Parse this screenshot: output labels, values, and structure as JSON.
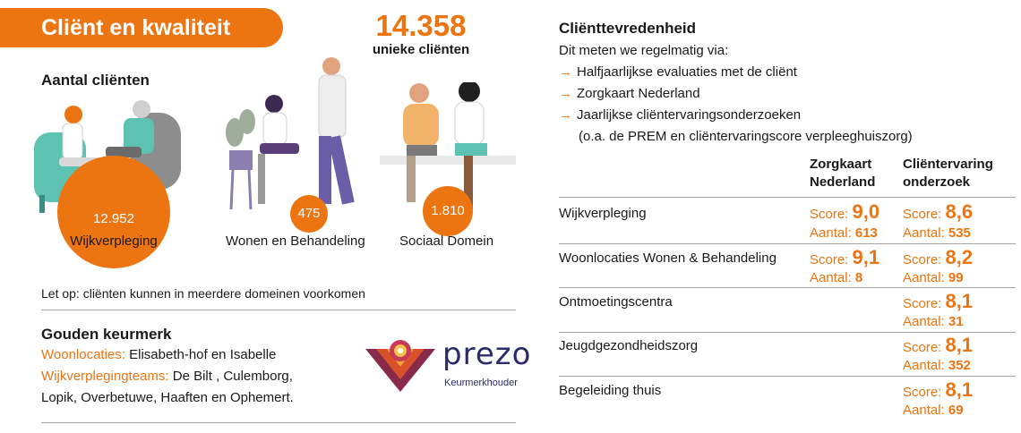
{
  "header": {
    "title": "Cliënt en kwaliteit"
  },
  "totals": {
    "number": "14.358",
    "label": "unieke cliënten"
  },
  "clients": {
    "title": "Aantal cliënten",
    "domains": [
      {
        "value": "12.952",
        "label": "Wijkverpleging"
      },
      {
        "value": "475",
        "label": "Wonen en Behandeling"
      },
      {
        "value": "1.810",
        "label": "Sociaal Domein"
      }
    ],
    "note": "Let op: cliënten kunnen in meerdere domeinen voorkomen"
  },
  "keurmerk": {
    "title": "Gouden keurmerk",
    "locations_label": "Woonlocaties:",
    "locations_value": " Elisabeth-hof en Isabelle",
    "teams_label": "Wijkverplegingteams:",
    "teams_value_1": " De Bilt , Culemborg,",
    "teams_value_2": "Lopik, Overbetuwe, Haaften en Ophemert.",
    "logo_name": "prezo",
    "logo_sub": "Keurmerkhouder"
  },
  "satisfaction": {
    "title": "Cliënttevredenheid",
    "intro": "Dit meten we regelmatig via:",
    "methods": [
      "Halfjaarlijkse evaluaties met de cliënt",
      "Zorgkaart Nederland",
      "Jaarlijkse cliëntervaringsonderzoeken"
    ],
    "methods_note": "(o.a. de PREM en cliëntervaringscore verpleeghuiszorg)",
    "col1_line1": "Zorgkaart",
    "col1_line2": "Nederland",
    "col2_line1": "Cliëntervaring",
    "col2_line2": "onderzoek",
    "score_label": "Score:",
    "count_label": "Aantal:",
    "rows": [
      {
        "name": "Wijkverpleging",
        "zk_score": "9,0",
        "zk_count": "613",
        "co_score": "8,6",
        "co_count": "535"
      },
      {
        "name": "Woonlocaties Wonen & Behandeling",
        "zk_score": "9,1",
        "zk_count": "8",
        "co_score": "8,2",
        "co_count": "99"
      },
      {
        "name": "Ontmoetingscentra",
        "co_score": "8,1",
        "co_count": "31"
      },
      {
        "name": "Jeugdgezondheidszorg",
        "co_score": "8,1",
        "co_count": "352"
      },
      {
        "name": "Begeleiding thuis",
        "co_score": "8,1",
        "co_count": "69"
      }
    ]
  },
  "colors": {
    "accent": "#ec7411",
    "dark": "#1a1a1a",
    "rule": "#a6a6a6",
    "logo": "#2b2a6b"
  }
}
